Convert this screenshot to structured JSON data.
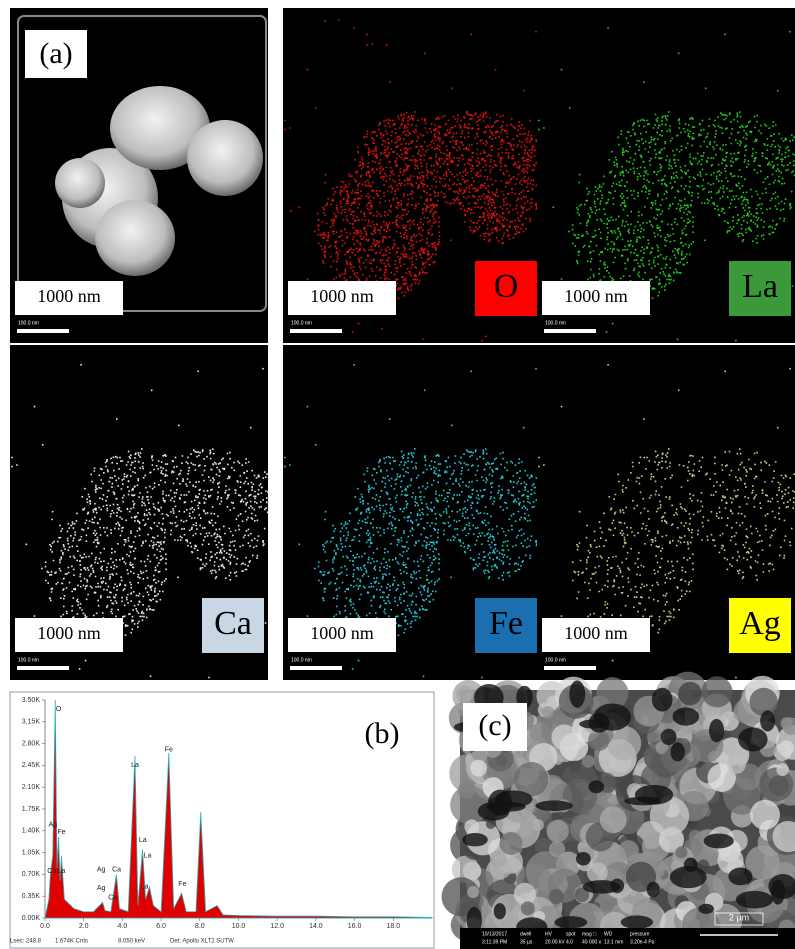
{
  "panels": [
    {
      "label": "(a)",
      "scale": "1000 nm",
      "bar": "100.0 nm"
    },
    {
      "element": "O",
      "scale": "1000 nm",
      "bar": "100.0 nm"
    },
    {
      "element": "La",
      "scale": "1000 nm",
      "bar": "100.0 nm"
    },
    {
      "element": "Ca",
      "scale": "1000 nm",
      "bar": "100.0 nm"
    },
    {
      "element": "Fe",
      "scale": "1000 nm",
      "bar": "100.0 nm"
    },
    {
      "element": "Ag",
      "scale": "1000 nm",
      "bar": "100.0 nm"
    }
  ],
  "chart_data": {
    "type": "area",
    "label": "(b)",
    "x": [
      0.0,
      0.2,
      0.28,
      0.4,
      0.53,
      0.62,
      0.7,
      0.78,
      0.85,
      1.0,
      1.5,
      2.0,
      2.5,
      2.98,
      3.1,
      3.4,
      3.69,
      3.85,
      4.3,
      4.65,
      4.8,
      5.04,
      5.2,
      5.4,
      5.6,
      6.0,
      6.4,
      6.65,
      7.06,
      7.3,
      7.8,
      8.05,
      8.3,
      8.9,
      9.2,
      10,
      12,
      14,
      16,
      18,
      20
    ],
    "values": [
      0,
      300,
      700,
      1000,
      3500,
      800,
      1300,
      600,
      1000,
      300,
      150,
      100,
      100,
      250,
      120,
      100,
      700,
      150,
      100,
      2600,
      200,
      1100,
      300,
      500,
      200,
      100,
      2650,
      150,
      400,
      100,
      100,
      1700,
      100,
      200,
      50,
      40,
      30,
      30,
      20,
      20,
      10
    ],
    "color": "#e00000",
    "xlim": [
      0,
      20
    ],
    "ylim": [
      0,
      3500
    ],
    "xticks": [
      {
        "value": 0,
        "label": "0.0"
      },
      {
        "value": 2,
        "label": "2.0"
      },
      {
        "value": 4,
        "label": "4.0"
      },
      {
        "value": 6,
        "label": "6.0"
      },
      {
        "value": 8,
        "label": "8.0"
      },
      {
        "value": 10,
        "label": "10.0"
      },
      {
        "value": 12,
        "label": "12.0"
      },
      {
        "value": 14,
        "label": "14.0"
      },
      {
        "value": 16,
        "label": "16.0"
      },
      {
        "value": 18,
        "label": "18.0"
      }
    ],
    "yticks": [
      {
        "value": 0,
        "label": "0.00K"
      },
      {
        "value": 350,
        "label": "0.35K"
      },
      {
        "value": 700,
        "label": "0.70K"
      },
      {
        "value": 1050,
        "label": "1.05K"
      },
      {
        "value": 1400,
        "label": "1.40K"
      },
      {
        "value": 1750,
        "label": "1.75K"
      },
      {
        "value": 2100,
        "label": "2.10K"
      },
      {
        "value": 2450,
        "label": "2.45K"
      },
      {
        "value": 2800,
        "label": "2.80K"
      },
      {
        "value": 3150,
        "label": "3.15K"
      },
      {
        "value": 3500,
        "label": "3.50K"
      }
    ],
    "annotations": [
      {
        "text": "O",
        "x": 0.7,
        "y": 3350
      },
      {
        "text": "Ag",
        "x": 0.4,
        "y": 1500
      },
      {
        "text": "Fe",
        "x": 0.85,
        "y": 1380
      },
      {
        "text": "Ca",
        "x": 0.35,
        "y": 750
      },
      {
        "text": "La",
        "x": 0.85,
        "y": 750
      },
      {
        "text": "Ag",
        "x": 2.9,
        "y": 780
      },
      {
        "text": "Ca",
        "x": 3.7,
        "y": 780
      },
      {
        "text": "Ag",
        "x": 2.9,
        "y": 480
      },
      {
        "text": "Ca",
        "x": 3.5,
        "y": 330
      },
      {
        "text": "La",
        "x": 4.65,
        "y": 2450
      },
      {
        "text": "La",
        "x": 5.05,
        "y": 1250
      },
      {
        "text": "La",
        "x": 5.3,
        "y": 1000
      },
      {
        "text": "La",
        "x": 5.15,
        "y": 500
      },
      {
        "text": "Fe",
        "x": 6.4,
        "y": 2700
      },
      {
        "text": "Fe",
        "x": 7.1,
        "y": 540
      }
    ],
    "footer": [
      "Lsec: 248.8",
      "1.674K Cnts",
      "8.050 keV",
      "Det: Apollo XLT2 SUTW"
    ]
  },
  "sem": {
    "label": "(c)",
    "info": [
      [
        "10/13/2017",
        "3:11:39 PM"
      ],
      [
        "dwell",
        "35 µs"
      ],
      [
        "HV",
        "20.00 kV"
      ],
      [
        "spot",
        "4.0"
      ],
      [
        "mag □",
        "40 000 x"
      ],
      [
        "WD",
        "13.1 mm"
      ],
      [
        "pressure",
        "3.20e-4 Pa"
      ]
    ],
    "scale": "2 µm"
  }
}
